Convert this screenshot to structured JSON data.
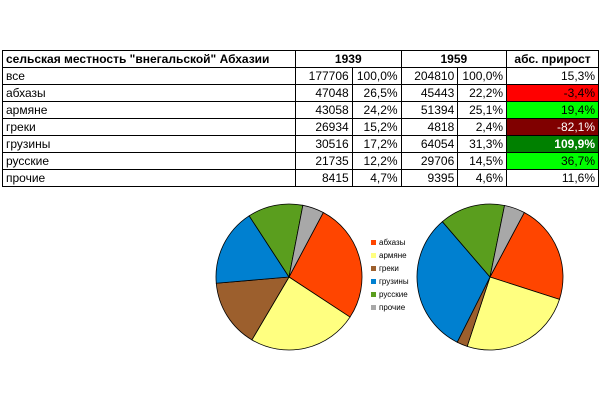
{
  "table": {
    "header": {
      "region": "сельская местность \"внегальской\" Абхазии",
      "y1": "1939",
      "y2": "1959",
      "growth": "абс. прирост"
    },
    "rows": [
      {
        "label": "все",
        "n1939": "177706",
        "p1939": "100,0%",
        "n1959": "204810",
        "p1959": "100,0%",
        "growth": "15,3%",
        "bg": "#ffffff",
        "fg": "#000000",
        "bold": false
      },
      {
        "label": "абхазы",
        "n1939": "47048",
        "p1939": "26,5%",
        "n1959": "45443",
        "p1959": "22,2%",
        "growth": "-3,4%",
        "bg": "#ff0000",
        "fg": "#000000",
        "bold": false
      },
      {
        "label": "армяне",
        "n1939": "43058",
        "p1939": "24,2%",
        "n1959": "51394",
        "p1959": "25,1%",
        "growth": "19,4%",
        "bg": "#00ff00",
        "fg": "#000000",
        "bold": false
      },
      {
        "label": "греки",
        "n1939": "26934",
        "p1939": "15,2%",
        "n1959": "4818",
        "p1959": "2,4%",
        "growth": "-82,1%",
        "bg": "#800000",
        "fg": "#ffffff",
        "bold": false
      },
      {
        "label": "грузины",
        "n1939": "30516",
        "p1939": "17,2%",
        "n1959": "64054",
        "p1959": "31,3%",
        "growth": "109,9%",
        "bg": "#008000",
        "fg": "#ffffff",
        "bold": true
      },
      {
        "label": "русские",
        "n1939": "21735",
        "p1939": "12,2%",
        "n1959": "29706",
        "p1959": "14,5%",
        "growth": "36,7%",
        "bg": "#00ff00",
        "fg": "#000000",
        "bold": false
      },
      {
        "label": "прочие",
        "n1939": "8415",
        "p1939": "4,7%",
        "n1959": "9395",
        "p1959": "4,6%",
        "growth": "11,6%",
        "bg": "#ffffff",
        "fg": "#000000",
        "bold": false
      }
    ]
  },
  "chart_data": [
    {
      "type": "pie",
      "categories": [
        "абхазы",
        "армяне",
        "греки",
        "грузины",
        "русские",
        "прочие"
      ],
      "values": [
        47048,
        43058,
        26934,
        30516,
        21735,
        8415
      ],
      "colors": [
        "#ff4500",
        "#ffff80",
        "#9c5f2d",
        "#0080d0",
        "#5a9e1e",
        "#a8a8a8"
      ]
    },
    {
      "type": "pie",
      "categories": [
        "абхазы",
        "армяне",
        "греки",
        "грузины",
        "русские",
        "прочие"
      ],
      "values": [
        45443,
        51394,
        4818,
        64054,
        29706,
        9395
      ],
      "colors": [
        "#ff4500",
        "#ffff80",
        "#9c5f2d",
        "#0080d0",
        "#5a9e1e",
        "#a8a8a8"
      ]
    }
  ]
}
